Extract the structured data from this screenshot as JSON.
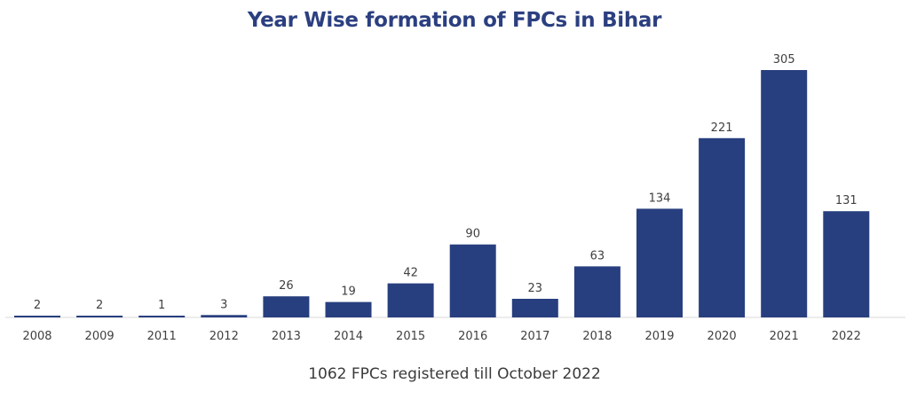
{
  "chart_data": {
    "type": "bar",
    "title": "Year Wise formation of FPCs in Bihar",
    "categories": [
      "2008",
      "2009",
      "2011",
      "2012",
      "2013",
      "2014",
      "2015",
      "2016",
      "2017",
      "2018",
      "2019",
      "2020",
      "2021",
      "2022"
    ],
    "values": [
      2,
      2,
      1,
      3,
      26,
      19,
      42,
      90,
      23,
      63,
      134,
      221,
      305,
      131
    ],
    "value_labels": [
      "2",
      "2",
      "1",
      "3",
      "26",
      "19",
      "42",
      "90",
      "23",
      "63",
      "134",
      "221",
      "305",
      "131"
    ],
    "xlabel": "",
    "ylabel": "",
    "ylim": [
      0,
      305
    ],
    "grid": false,
    "data_labels": true,
    "bar_color": "#283f7f"
  },
  "caption": "1062 FPCs registered till October 2022"
}
